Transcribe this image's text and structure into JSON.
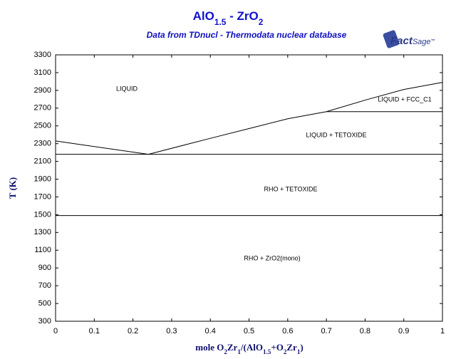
{
  "chart_data": {
    "type": "line",
    "title": [
      "AlO",
      "1.5",
      " - ZrO",
      "2"
    ],
    "subtitle": "Data from TDnucl - Thermodata nuclear database",
    "logo": [
      "Fact",
      "Sage",
      "™"
    ],
    "xlabel": [
      "mole O",
      "2",
      "Zr",
      "1",
      "/(AlO",
      "1.5",
      "+O",
      "2",
      "Zr",
      "1",
      ")"
    ],
    "ylabel": "T (K)",
    "xlim": [
      0,
      1
    ],
    "xticks": [
      0,
      0.1,
      0.2,
      0.3,
      0.4,
      0.5,
      0.6,
      0.7,
      0.8,
      0.9,
      1
    ],
    "ylim": [
      300,
      3300
    ],
    "yticks": [
      300,
      500,
      700,
      900,
      1100,
      1300,
      1500,
      1700,
      1900,
      2100,
      2300,
      2500,
      2700,
      2900,
      3100,
      3300
    ],
    "series": [
      {
        "color": "#000000",
        "x": [
          0,
          0.24
        ],
        "values": [
          2330,
          2180
        ]
      },
      {
        "color": "#000000",
        "x": [
          0.24,
          0.4,
          0.5,
          0.6,
          0.7,
          0.8,
          0.9,
          1
        ],
        "values": [
          2180,
          2360,
          2470,
          2580,
          2660,
          2790,
          2910,
          2990
        ]
      },
      {
        "color": "#000000",
        "x": [
          0,
          1
        ],
        "values": [
          2180,
          2180
        ]
      },
      {
        "color": "#000000",
        "x": [
          0,
          1
        ],
        "values": [
          1490,
          1490
        ]
      },
      {
        "color": "#000000",
        "x": [
          0.7,
          1
        ],
        "values": [
          2660,
          2660
        ]
      }
    ],
    "annotations": [
      "LIQUID",
      "LIQUID + FCC_C1",
      "LIQUID + TETOXIDE",
      "RHO + TETOXIDE",
      "RHO + ZrO2(mono)"
    ]
  }
}
